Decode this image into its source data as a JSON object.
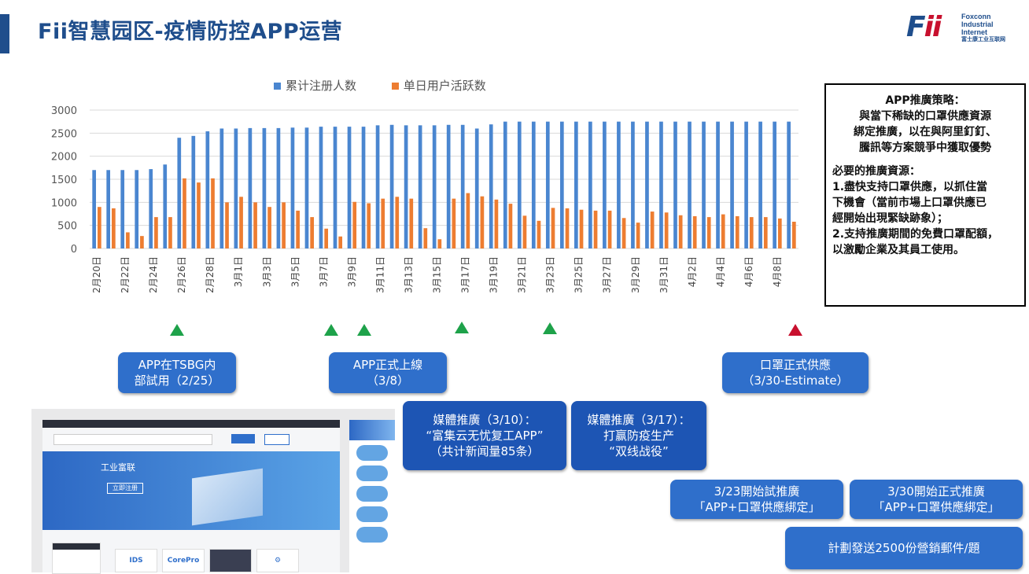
{
  "header": {
    "title": "Fii智慧园区-疫情防控APP运营",
    "logo_mark": "Fii",
    "logo_lines": [
      "Foxconn",
      "Industrial",
      "Internet",
      "富士康工业互联网"
    ]
  },
  "colors": {
    "series1": "#4a86d0",
    "series2": "#ed7d31",
    "box": "#2f6fcb",
    "green": "#1ea24a",
    "red": "#c8102e"
  },
  "chart_data": {
    "type": "bar",
    "title": "",
    "xlabel": "",
    "ylabel": "",
    "ylim": [
      0,
      3000
    ],
    "yticks": [
      "0",
      "500",
      "1000",
      "1500",
      "2000",
      "2500",
      "3000"
    ],
    "legend_position": "top",
    "grid": true,
    "categories": [
      "2月20日",
      "2月21日",
      "2月22日",
      "2月23日",
      "2月24日",
      "2月25日",
      "2月26日",
      "2月27日",
      "2月28日",
      "2月29日",
      "3月1日",
      "3月2日",
      "3月3日",
      "3月4日",
      "3月5日",
      "3月6日",
      "3月7日",
      "3月8日",
      "3月9日",
      "3月10日",
      "3月11日",
      "3月12日",
      "3月13日",
      "3月14日",
      "3月15日",
      "3月16日",
      "3月17日",
      "3月18日",
      "3月19日",
      "3月20日",
      "3月21日",
      "3月22日",
      "3月23日",
      "3月24日",
      "3月25日",
      "3月26日",
      "3月27日",
      "3月28日",
      "3月29日",
      "3月30日",
      "3月31日",
      "4月1日",
      "4月2日",
      "4月3日",
      "4月4日",
      "4月5日",
      "4月6日",
      "4月7日",
      "4月8日",
      "4月9日"
    ],
    "tick_labels": [
      "2月20日",
      "2月22日",
      "2月24日",
      "2月26日",
      "2月28日",
      "3月1日",
      "3月3日",
      "3月5日",
      "3月7日",
      "3月9日",
      "3月11日",
      "3月13日",
      "3月15日",
      "3月17日",
      "3月19日",
      "3月21日",
      "3月23日",
      "3月25日",
      "3月27日",
      "3月29日",
      "3月31日",
      "4月2日",
      "4月4日",
      "4月6日",
      "4月8日"
    ],
    "series": [
      {
        "name": "累计注册人数",
        "values": [
          1700,
          1700,
          1700,
          1700,
          1720,
          1820,
          2400,
          2440,
          2540,
          2600,
          2600,
          2610,
          2610,
          2610,
          2620,
          2620,
          2640,
          2640,
          2640,
          2640,
          2670,
          2680,
          2670,
          2670,
          2670,
          2680,
          2680,
          2600,
          2690,
          2750,
          2750,
          2750,
          2750,
          2750,
          2750,
          2750,
          2750,
          2750,
          2750,
          2750,
          2750,
          2750,
          2750,
          2750,
          2750,
          2750,
          2750,
          2750,
          2750,
          2750
        ]
      },
      {
        "name": "单日用户活跃数",
        "values": [
          900,
          870,
          350,
          270,
          680,
          680,
          1520,
          1430,
          1520,
          1000,
          1120,
          1000,
          900,
          1000,
          820,
          680,
          430,
          260,
          1010,
          980,
          1080,
          1120,
          1080,
          440,
          200,
          1080,
          1200,
          1130,
          1060,
          970,
          710,
          600,
          880,
          870,
          840,
          820,
          820,
          660,
          560,
          800,
          780,
          720,
          700,
          680,
          740,
          700,
          680,
          680,
          650,
          580
        ]
      }
    ]
  },
  "strategy": {
    "heading": "APP推廣策略：",
    "lines1": [
      "與當下稀缺的口罩供應資源",
      "綁定推廣，以在與阿里釘釘、",
      "騰訊等方案競爭中獲取優勢"
    ],
    "lines2": [
      "必要的推廣資源：",
      "1.盡快支持口罩供應，以抓住當",
      "下機會（當前市場上口罩供應已",
      "經開始出現緊缺跡象）；",
      "2.支持推廣期間的免費口罩配額，",
      "以激勵企業及其員工使用。"
    ]
  },
  "milestones": {
    "box1": "APP在TSBG内\n部試用（2/25）",
    "box2": "APP正式上線\n（3/8）",
    "box3": "媒體推廣（3/10）：\n“富集云无忧复工APP”\n（共计新闻量85条）",
    "box4": "媒體推廣（3/17）：\n打赢防疫生产\n“双线战役”",
    "box5": "口罩正式供應\n（3/30-Estimate）",
    "box6": "3/23開始試推廣\n「APP+口罩供應綁定」",
    "box7": "3/30開始正式推廣\n「APP+口罩供應綁定」",
    "box8": "計劃發送2500份營銷郵件/題"
  },
  "mockup": {
    "hero_title": "工业富联",
    "hero_btn": "立即注册",
    "card1": "IDS",
    "card2": "CorePro"
  }
}
